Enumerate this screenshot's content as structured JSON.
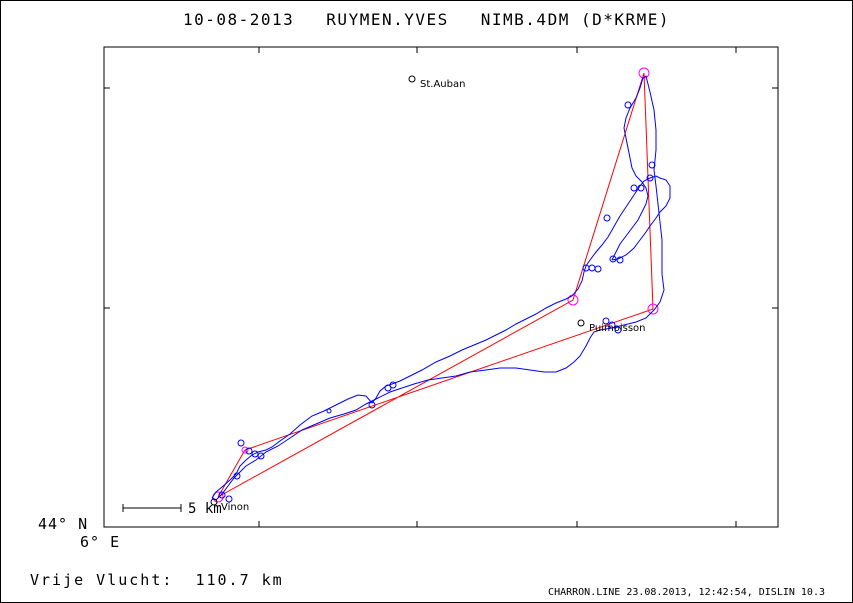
{
  "header": {
    "date": "10-08-2013",
    "pilot": "RUYMEN.YVES",
    "glider": "NIMB.4DM (D*KRME)"
  },
  "axes": {
    "lat_label": "44° N",
    "lon_label": "6° E"
  },
  "towns": [
    {
      "name": "St.Auban"
    },
    {
      "name": "Puimoisson"
    },
    {
      "name": "Vinon"
    }
  ],
  "scale": {
    "label": "5 km"
  },
  "summary": {
    "label": "Vrije Vlucht:",
    "distance": "110.7 km"
  },
  "footer": {
    "text": "CHARRON.LINE 23.08.2013, 12:42:54, DISLIN 10.3"
  },
  "colors": {
    "track": "#0000ff",
    "task": "#ff0000",
    "turnpoint": "#ff00ff",
    "frame": "#000000"
  }
}
